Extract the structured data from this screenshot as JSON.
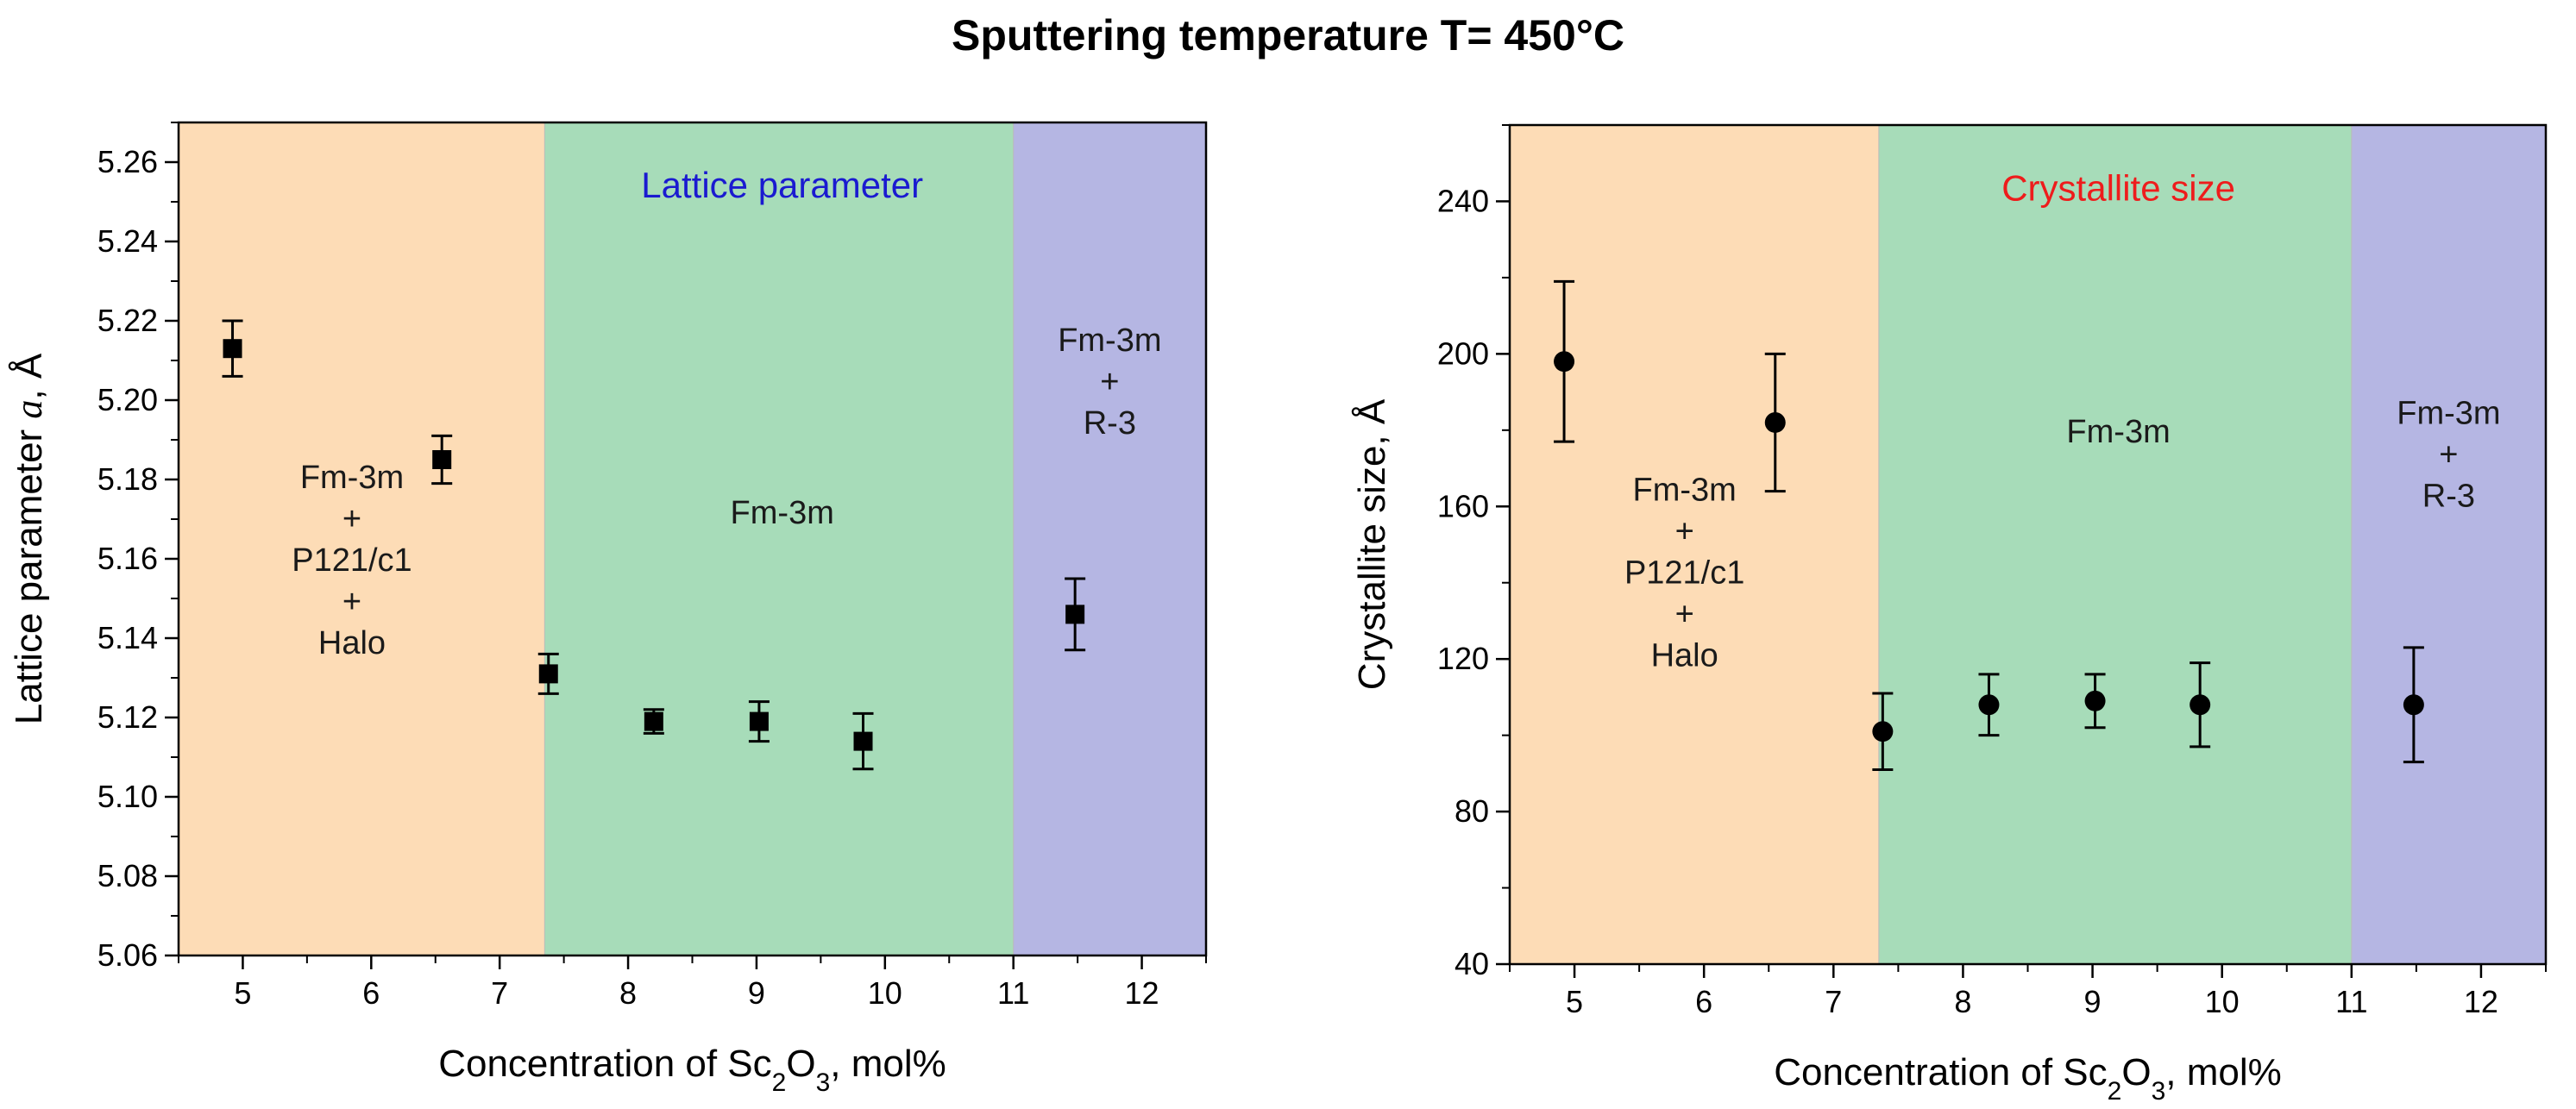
{
  "title": "Sputtering temperature T= 450°C",
  "colors": {
    "region_mixed": "#fddcb6",
    "region_cubic": "#a7dcb9",
    "region_rhombo": "#b5b6e3",
    "label_lattice": "#1a1ad0",
    "label_crystallite": "#ee1c1c",
    "marker": "#000000"
  },
  "chart_data": [
    {
      "type": "scatter",
      "title": "Lattice parameter",
      "xlabel": "Concentration of Sc2O3, mol%",
      "ylabel": "Lattice parameter a, Å",
      "xlim": [
        4.5,
        12.5
      ],
      "ylim": [
        5.06,
        5.27
      ],
      "xticks": [
        5,
        6,
        7,
        8,
        9,
        10,
        11,
        12
      ],
      "yticks": [
        5.06,
        5.08,
        5.1,
        5.12,
        5.14,
        5.16,
        5.18,
        5.2,
        5.22,
        5.24,
        5.26
      ],
      "ytick_decimals": 2,
      "marker": "square",
      "grid": false,
      "x": [
        4.92,
        6.55,
        7.38,
        8.2,
        9.02,
        9.83,
        11.48
      ],
      "y": [
        5.213,
        5.185,
        5.131,
        5.119,
        5.119,
        5.114,
        5.146
      ],
      "yerr": [
        0.007,
        0.006,
        0.005,
        0.003,
        0.005,
        0.007,
        0.009
      ],
      "regions": [
        {
          "x0": 4.5,
          "x1": 7.35,
          "color": "#fddcb6",
          "lines": [
            "Fm-3m",
            "+",
            "P121/c1",
            "+",
            "Halo"
          ],
          "label_x": 5.85,
          "label_y": 5.16
        },
        {
          "x0": 7.35,
          "x1": 11.0,
          "color": "#a7dcb9",
          "lines": [
            "Fm-3m"
          ],
          "label_x": 9.2,
          "label_y": 5.172
        },
        {
          "x0": 11.0,
          "x1": 12.5,
          "color": "#b5b6e3",
          "lines": [
            "Fm-3m",
            "+",
            "R-3"
          ],
          "label_x": 11.75,
          "label_y": 5.205
        }
      ]
    },
    {
      "type": "scatter",
      "title": "Crystallite size",
      "xlabel": "Concentration of Sc2O3, mol%",
      "ylabel": "Crystallite size, Å",
      "xlim": [
        4.5,
        12.5
      ],
      "ylim": [
        40,
        260
      ],
      "xticks": [
        5,
        6,
        7,
        8,
        9,
        10,
        11,
        12
      ],
      "yticks": [
        40,
        80,
        120,
        160,
        200,
        240
      ],
      "ytick_decimals": 0,
      "marker": "circle",
      "grid": false,
      "x": [
        4.92,
        6.55,
        7.38,
        8.2,
        9.02,
        9.83,
        11.48
      ],
      "y": [
        198,
        182,
        101,
        108,
        109,
        108,
        108
      ],
      "yerr": [
        21,
        18,
        10,
        8,
        7,
        11,
        15
      ],
      "regions": [
        {
          "x0": 4.5,
          "x1": 7.35,
          "color": "#fddcb6",
          "lines": [
            "Fm-3m",
            "+",
            "P121/c1",
            "+",
            "Halo"
          ],
          "label_x": 5.85,
          "label_y": 143
        },
        {
          "x0": 7.35,
          "x1": 11.0,
          "color": "#a7dcb9",
          "lines": [
            "Fm-3m"
          ],
          "label_x": 9.2,
          "label_y": 180
        },
        {
          "x0": 11.0,
          "x1": 12.5,
          "color": "#b5b6e3",
          "lines": [
            "Fm-3m",
            "+",
            "R-3"
          ],
          "label_x": 11.75,
          "label_y": 174
        }
      ]
    }
  ]
}
